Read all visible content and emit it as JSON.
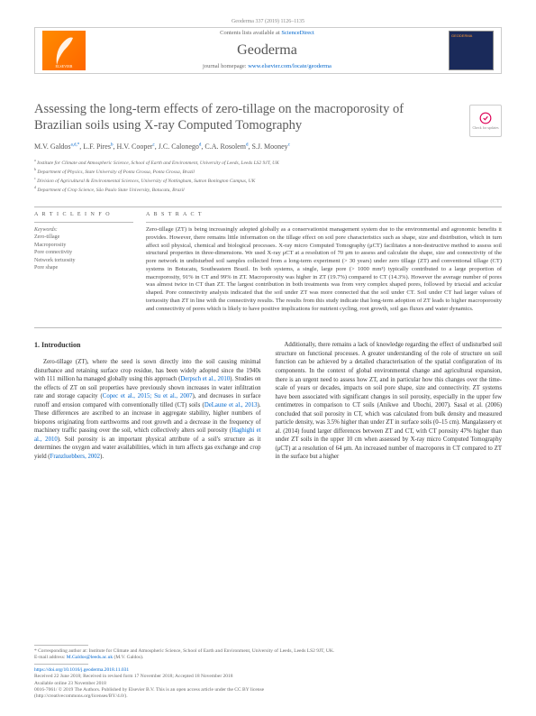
{
  "running_head": "Geoderma 337 (2019) 1126–1135",
  "header": {
    "contents_prefix": "Contents lists available at ",
    "contents_link": "ScienceDirect",
    "journal_name": "Geoderma",
    "homepage_prefix": "journal homepage: ",
    "homepage_link": "www.elsevier.com/locate/geoderma"
  },
  "updates_badge": "Check for updates",
  "title": "Assessing the long-term effects of zero-tillage on the macroporosity of Brazilian soils using X-ray Computed Tomography",
  "authors_html": "M.V. Galdos<sup>a,d,*</sup>, L.F. Pires<sup>b</sup>, H.V. Cooper<sup>c</sup>, J.C. Calonego<sup>d</sup>, C.A. Rosolem<sup>d</sup>, S.J. Mooney<sup>c</sup>",
  "affiliations": [
    "a Institute for Climate and Atmospheric Science, School of Earth and Environment, University of Leeds, Leeds LS2 9JT, UK",
    "b Department of Physics, State University of Ponta Grossa, Ponta Grossa, Brazil",
    "c Division of Agricultural & Environmental Sciences, University of Nottingham, Sutton Bonington Campus, UK",
    "d Department of Crop Science, São Paulo State University, Botucatu, Brazil"
  ],
  "article_info_label": "A R T I C L E  I N F O",
  "abstract_label": "A B S T R A C T",
  "keywords_label": "Keywords:",
  "keywords": [
    "Zero-tillage",
    "Macroporosity",
    "Pore connectivity",
    "Network tortuosity",
    "Pore shape"
  ],
  "abstract": "Zero-tillage (ZT) is being increasingly adopted globally as a conservationist management system due to the environmental and agronomic benefits it provides. However, there remains little information on the tillage effect on soil pore characteristics such as shape, size and distribution, which in turn affect soil physical, chemical and biological processes. X-ray micro Computed Tomography (μCT) facilitates a non-destructive method to assess soil structural properties in three-dimensions. We used X-ray μCT at a resolution of 70 μm to assess and calculate the shape, size and connectivity of the pore network in undisturbed soil samples collected from a long-term experiment (> 30 years) under zero tillage (ZT) and conventional tillage (CT) systems in Botucatu, Southeastern Brazil. In both systems, a single, large pore (> 1000 mm³) typically contributed to a large proportion of macroporosity, 91% in CT and 99% in ZT. Macroporosity was higher in ZT (19.7%) compared to CT (14.3%). However the average number of pores was almost twice in CT than ZT. The largest contribution in both treatments was from very complex shaped pores, followed by triaxial and acicular shaped. Pore connectivity analysis indicated that the soil under ZT was more connected that the soil under CT. Soil under CT had larger values of tortuosity than ZT in line with the connectivity results. The results from this study indicate that long-term adoption of ZT leads to higher macroporosity and connectivity of pores which is likely to have positive implications for nutrient cycling, root growth, soil gas fluxes and water dynamics.",
  "intro_heading": "1. Introduction",
  "intro_col1": "Zero-tillage (ZT), where the seed is sown directly into the soil causing minimal disturbance and retaining surface crop residue, has been widely adopted since the 1940s with 111 million ha managed globally using this approach (Derpsch et al., 2010). Studies on the effects of ZT on soil properties have previously shown increases in water infiltration rate and storage capacity (Copec et al., 2015; Su et al., 2007), and decreases in surface runoff and erosion compared with conventionally tilled (CT) soils (DeLaune et al., 2013). These differences are ascribed to an increase in aggregate stability, higher numbers of biopores originating from earthworms and root growth and a decrease in the frequency of machinery traffic passing over the soil, which collectively alters soil porosity (Haghighi et al., 2010). Soil porosity is an important physical attribute of a soil's structure as it determines the oxygen and water availabilities, which in turn affects gas exchange and crop yield (Franzluebbers, 2002).",
  "intro_col2": "Additionally, there remains a lack of knowledge regarding the effect of undisturbed soil structure on functional processes. A greater understanding of the role of structure on soil function can be achieved by a detailed characterisation of the spatial configuration of its components. In the context of global environmental change and agricultural expansion, there is an urgent need to assess how ZT, and in particular how this changes over the time-scale of years or decades, impacts on soil pore shape, size and connectivity. ZT systems have been associated with significant changes in soil porosity, especially in the upper few centimetres in comparison to CT soils (Anikwe and Ubochi, 2007). Sasal et al. (2006) concluded that soil porosity in CT, which was calculated from bulk density and measured particle density, was 3.5% higher than under ZT in surface soils (0–15 cm). Mangalassery et al. (2014) found larger differences between ZT and CT, with CT porosity 47% higher than under ZT soils in the upper 10 cm when assessed by X-ray micro Computed Tomography (μCT) at a resolution of 64 μm. An increased number of macropores in CT compared to ZT in the surface but a higher",
  "footer": {
    "corr": "* Corresponding author at: Institute for Climate and Atmospheric Science, School of Earth and Environment, University of Leeds, Leeds LS2 9JT, UK.",
    "email_label": "E-mail address: ",
    "email": "M.Galdos@leeds.ac.uk",
    "email_suffix": " (M.V. Galdos).",
    "doi": "https://doi.org/10.1016/j.geoderma.2018.11.031",
    "received": "Received 22 June 2018; Received in revised form 17 November 2018; Accepted 18 November 2018",
    "available": "Available online 23 November 2018",
    "copyright": "0016-7061/ © 2019 The Authors. Published by Elsevier B.V. This is an open access article under the CC BY license",
    "license": "(http://creativecommons.org/licenses/BY/4.0/)."
  }
}
